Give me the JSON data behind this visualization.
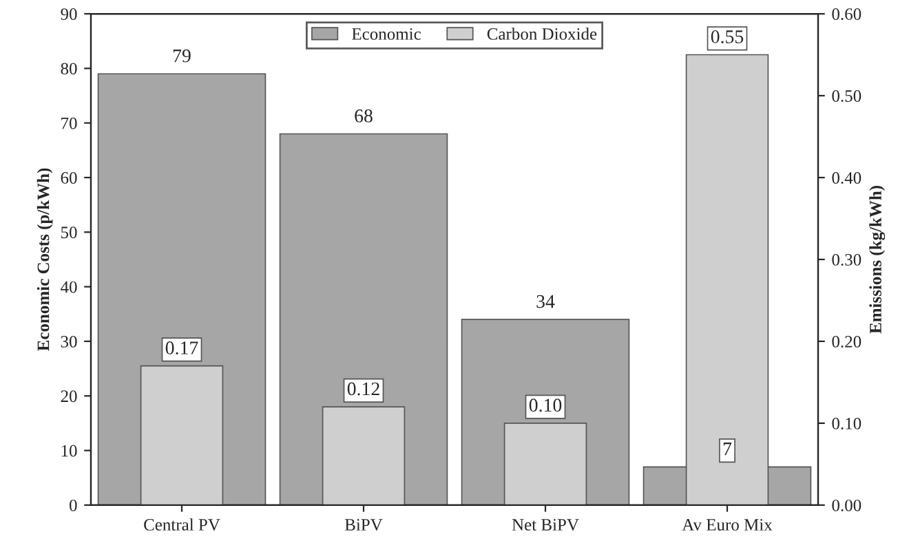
{
  "chart_data": {
    "type": "bar",
    "categories": [
      "Central PV",
      "BiPV",
      "Net BiPV",
      "Av Euro Mix"
    ],
    "ylabel": "Economic Costs (p/kWh)",
    "y2label": "Emissions (kg/kWh)",
    "series": [
      {
        "name": "Economic",
        "color": "#a6a6a6",
        "values": [
          79,
          68,
          34,
          7
        ],
        "value_labels": [
          "79",
          "68",
          "34",
          "7"
        ]
      },
      {
        "name": "Carbon Dioxide",
        "color": "#cfcfcf",
        "axis": "y2",
        "values": [
          0.17,
          0.12,
          0.1,
          0.55
        ],
        "value_labels": [
          "0.17",
          "0.12",
          "0.10",
          "0.55"
        ]
      }
    ],
    "ylim": [
      0,
      90
    ],
    "yticks": [
      0,
      10,
      20,
      30,
      40,
      50,
      60,
      70,
      80,
      90
    ],
    "y2lim": [
      0,
      0.6
    ],
    "y2ticks": [
      {
        "value": 0,
        "label": "0.00"
      },
      {
        "value": 0.1,
        "label": "0.10"
      },
      {
        "value": 0.2,
        "label": "0.20"
      },
      {
        "value": 0.3,
        "label": "0.30"
      },
      {
        "value": 0.4,
        "label": "0.40"
      },
      {
        "value": 0.5,
        "label": "0.50"
      },
      {
        "value": 0.6,
        "label": "0.60"
      }
    ],
    "legend": "top",
    "grid": false
  }
}
